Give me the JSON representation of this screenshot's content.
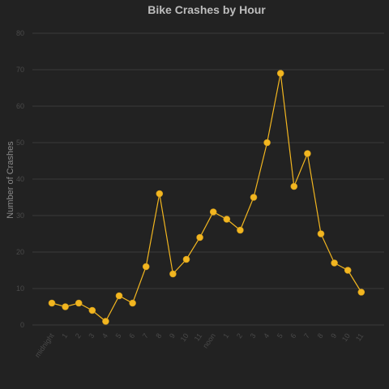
{
  "chart_data": {
    "type": "line",
    "title": "Bike Crashes by Hour",
    "xlabel": "",
    "ylabel": "Number of Crashes",
    "ylim": [
      0,
      80
    ],
    "yticks": [
      0,
      10,
      20,
      30,
      40,
      50,
      60,
      70,
      80
    ],
    "grid": true,
    "categories": [
      "midnight",
      "1",
      "2",
      "3",
      "4",
      "5",
      "6",
      "7",
      "8",
      "9",
      "10",
      "11",
      "noon",
      "1",
      "2",
      "3",
      "4",
      "5",
      "6",
      "7",
      "8",
      "9",
      "10",
      "11"
    ],
    "series": [
      {
        "values": [
          6,
          5,
          6,
          4,
          1,
          8,
          6,
          16,
          36,
          14,
          18,
          24,
          31,
          29,
          26,
          35,
          50,
          69,
          38,
          47,
          25,
          17,
          15,
          9
        ]
      }
    ],
    "colors": {
      "line": "#f2b620",
      "background": "#222222",
      "grid": "#3a3a3a"
    }
  }
}
